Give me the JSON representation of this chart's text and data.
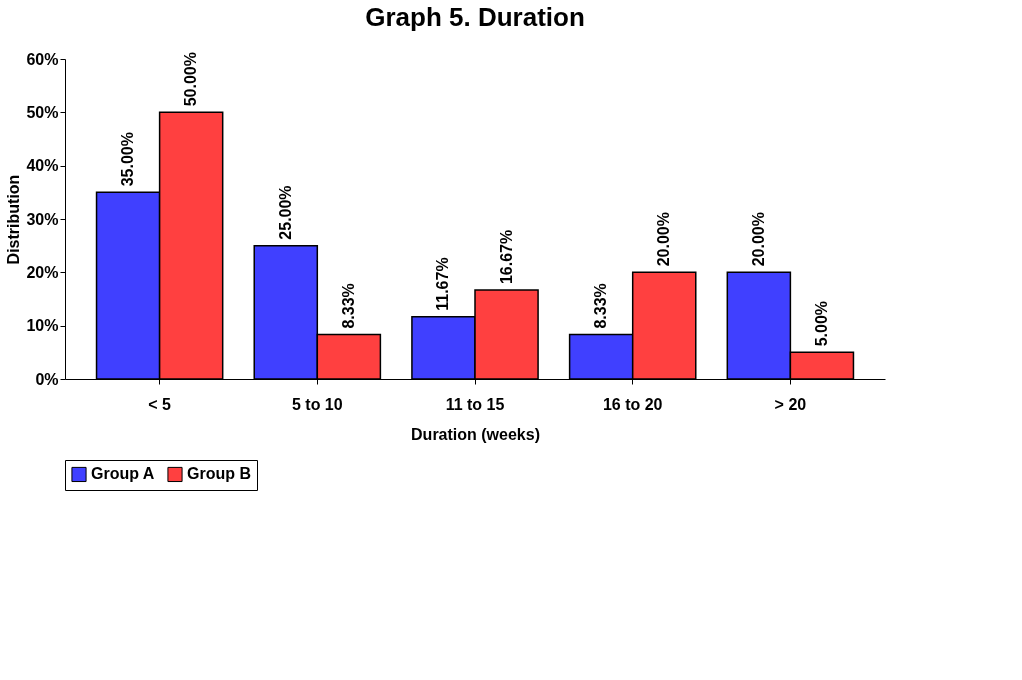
{
  "chart_data": {
    "type": "bar",
    "title": "Graph 5. Duration",
    "xlabel": "Duration (weeks)",
    "ylabel": "Distribution",
    "categories": [
      "< 5",
      "5 to 10",
      "11 to 15",
      "16 to 20",
      "> 20"
    ],
    "series": [
      {
        "name": "Group A",
        "color": "#4040ff",
        "values": [
          35,
          25,
          11.67,
          8.33,
          20
        ],
        "value_labels": [
          "35.00%",
          "25.00%",
          "11.67%",
          "8.33%",
          "20.00%"
        ]
      },
      {
        "name": "Group B",
        "color": "#ff4040",
        "values": [
          50,
          8.33,
          16.67,
          20,
          5
        ],
        "value_labels": [
          "50.00%",
          "8.33%",
          "16.67%",
          "20.00%",
          "5.00%"
        ]
      }
    ],
    "ylim": [
      0,
      60
    ],
    "yticks": [
      {
        "value": 0,
        "label": "0%"
      },
      {
        "value": 10,
        "label": "10%"
      },
      {
        "value": 20,
        "label": "20%"
      },
      {
        "value": 30,
        "label": "30%"
      },
      {
        "value": 40,
        "label": "40%"
      },
      {
        "value": 50,
        "label": "50%"
      },
      {
        "value": 60,
        "label": "60%"
      }
    ],
    "grid": false,
    "legend": "bottom"
  }
}
